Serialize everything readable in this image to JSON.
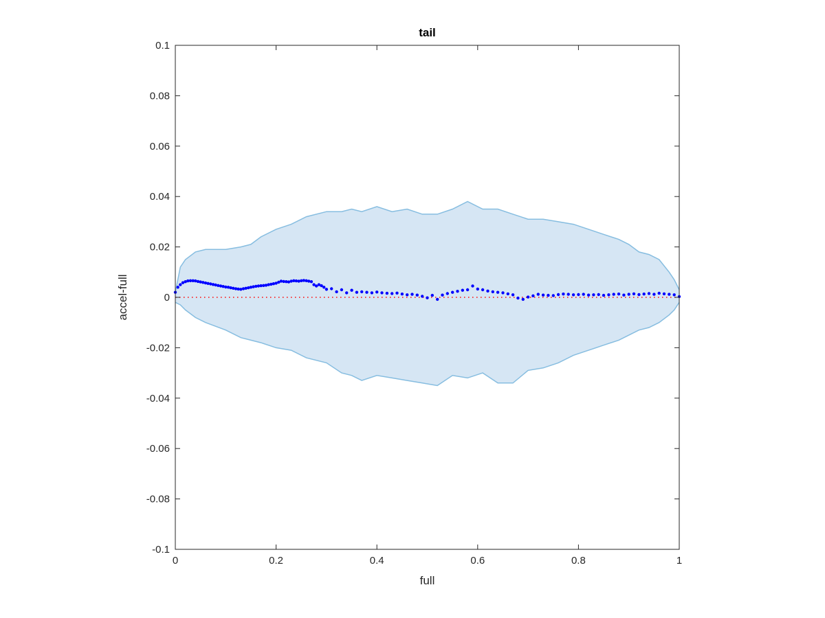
{
  "chart_data": {
    "type": "scatter",
    "title": "tail",
    "xlabel": "full",
    "ylabel": "accel-full",
    "xlim": [
      0,
      1
    ],
    "ylim": [
      -0.1,
      0.1
    ],
    "xticks": [
      0,
      0.2,
      0.4,
      0.6,
      0.8,
      1
    ],
    "xtick_labels": [
      "0",
      "0.2",
      "0.4",
      "0.6",
      "0.8",
      "1"
    ],
    "yticks": [
      0.1,
      0.08,
      0.06,
      0.04,
      0.02,
      0,
      -0.02,
      -0.04,
      -0.06,
      -0.08,
      -0.1
    ],
    "ytick_labels": [
      "0.1",
      "0.08",
      "0.06",
      "0.04",
      "0.02",
      "0",
      "-0.02",
      "-0.04",
      "-0.06",
      "-0.08",
      "-0.1"
    ],
    "grid": false,
    "band": {
      "fill_color": "#d6e6f4",
      "edge_color": "#86bde0",
      "x": [
        0,
        0.01,
        0.02,
        0.04,
        0.06,
        0.1,
        0.13,
        0.15,
        0.17,
        0.2,
        0.23,
        0.26,
        0.3,
        0.33,
        0.35,
        0.37,
        0.4,
        0.43,
        0.46,
        0.49,
        0.52,
        0.55,
        0.58,
        0.61,
        0.64,
        0.67,
        0.7,
        0.73,
        0.76,
        0.79,
        0.82,
        0.85,
        0.88,
        0.9,
        0.92,
        0.94,
        0.96,
        0.98,
        0.99,
        1
      ],
      "upper": [
        0.002,
        0.012,
        0.015,
        0.018,
        0.019,
        0.019,
        0.02,
        0.021,
        0.024,
        0.027,
        0.029,
        0.032,
        0.034,
        0.034,
        0.035,
        0.034,
        0.036,
        0.034,
        0.035,
        0.033,
        0.033,
        0.035,
        0.038,
        0.035,
        0.035,
        0.033,
        0.031,
        0.031,
        0.03,
        0.029,
        0.027,
        0.025,
        0.023,
        0.021,
        0.018,
        0.017,
        0.015,
        0.01,
        0.007,
        0.003
      ],
      "lower": [
        -0.002,
        -0.003,
        -0.005,
        -0.008,
        -0.01,
        -0.013,
        -0.016,
        -0.017,
        -0.018,
        -0.02,
        -0.021,
        -0.024,
        -0.026,
        -0.03,
        -0.031,
        -0.033,
        -0.031,
        -0.032,
        -0.033,
        -0.034,
        -0.035,
        -0.031,
        -0.032,
        -0.03,
        -0.034,
        -0.034,
        -0.029,
        -0.028,
        -0.026,
        -0.023,
        -0.021,
        -0.019,
        -0.017,
        -0.015,
        -0.013,
        -0.012,
        -0.01,
        -0.007,
        -0.005,
        -0.002
      ]
    },
    "series": [
      {
        "color": "#0000ff",
        "marker": "dot",
        "x": [
          0,
          0.005,
          0.01,
          0.015,
          0.02,
          0.025,
          0.03,
          0.035,
          0.04,
          0.045,
          0.05,
          0.055,
          0.06,
          0.065,
          0.07,
          0.075,
          0.08,
          0.085,
          0.09,
          0.095,
          0.1,
          0.105,
          0.11,
          0.115,
          0.12,
          0.125,
          0.13,
          0.135,
          0.14,
          0.145,
          0.15,
          0.155,
          0.16,
          0.165,
          0.17,
          0.175,
          0.18,
          0.185,
          0.19,
          0.195,
          0.2,
          0.205,
          0.21,
          0.215,
          0.22,
          0.225,
          0.23,
          0.235,
          0.24,
          0.245,
          0.25,
          0.255,
          0.26,
          0.265,
          0.27,
          0.275,
          0.28,
          0.285,
          0.29,
          0.295,
          0.3,
          0.31,
          0.32,
          0.33,
          0.34,
          0.35,
          0.36,
          0.37,
          0.38,
          0.39,
          0.4,
          0.41,
          0.42,
          0.43,
          0.44,
          0.45,
          0.46,
          0.47,
          0.48,
          0.49,
          0.5,
          0.51,
          0.52,
          0.53,
          0.54,
          0.55,
          0.56,
          0.57,
          0.58,
          0.59,
          0.6,
          0.61,
          0.62,
          0.63,
          0.64,
          0.65,
          0.66,
          0.67,
          0.68,
          0.69,
          0.7,
          0.71,
          0.72,
          0.73,
          0.74,
          0.75,
          0.76,
          0.77,
          0.78,
          0.79,
          0.8,
          0.81,
          0.82,
          0.83,
          0.84,
          0.85,
          0.86,
          0.87,
          0.88,
          0.89,
          0.9,
          0.91,
          0.92,
          0.93,
          0.94,
          0.95,
          0.96,
          0.97,
          0.98,
          0.99,
          1
        ],
        "y": [
          0.002,
          0.004,
          0.005,
          0.0058,
          0.0062,
          0.0065,
          0.0066,
          0.0066,
          0.0065,
          0.0063,
          0.0061,
          0.0059,
          0.0057,
          0.0055,
          0.0053,
          0.0051,
          0.0049,
          0.0047,
          0.0045,
          0.0043,
          0.0041,
          0.004,
          0.0038,
          0.0036,
          0.0034,
          0.0033,
          0.0032,
          0.0034,
          0.0036,
          0.0038,
          0.004,
          0.0042,
          0.0044,
          0.0045,
          0.0046,
          0.0047,
          0.0048,
          0.005,
          0.0052,
          0.0054,
          0.0056,
          0.006,
          0.0064,
          0.0063,
          0.0062,
          0.0061,
          0.0064,
          0.0066,
          0.0065,
          0.0064,
          0.0066,
          0.0067,
          0.0066,
          0.0064,
          0.0062,
          0.005,
          0.0045,
          0.005,
          0.0046,
          0.004,
          0.0032,
          0.0034,
          0.0022,
          0.003,
          0.0018,
          0.0028,
          0.002,
          0.0022,
          0.002,
          0.0018,
          0.0021,
          0.0018,
          0.0016,
          0.0015,
          0.0017,
          0.0013,
          0.001,
          0.0012,
          0.0009,
          0.0004,
          -0.0002,
          0.0008,
          -0.0008,
          0.0009,
          0.0015,
          0.002,
          0.0024,
          0.0028,
          0.003,
          0.0045,
          0.0033,
          0.003,
          0.0025,
          0.0022,
          0.002,
          0.0018,
          0.0014,
          0.001,
          -0.0003,
          -0.0008,
          0.0001,
          0.0006,
          0.0012,
          0.0009,
          0.0008,
          0.0007,
          0.0011,
          0.0013,
          0.0012,
          0.001,
          0.0011,
          0.0012,
          0.0009,
          0.001,
          0.0011,
          0.0008,
          0.001,
          0.0012,
          0.0013,
          0.0009,
          0.0012,
          0.0014,
          0.0011,
          0.0013,
          0.0015,
          0.0012,
          0.0016,
          0.0014,
          0.0012,
          0.001,
          0.0003
        ]
      }
    ],
    "reference_line": {
      "y": 0,
      "color": "#ff0000",
      "style": "dotted"
    }
  }
}
